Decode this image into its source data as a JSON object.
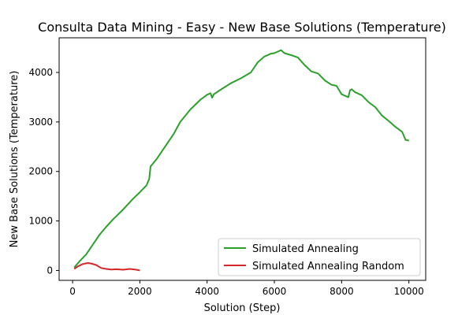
{
  "chart_data": {
    "type": "line",
    "title": "Consulta Data Mining - Easy - New Base Solutions (Temperature)",
    "xlabel": "Solution (Step)",
    "ylabel": "New Base Solutions (Temperature)",
    "xlim": [
      -400,
      10500
    ],
    "ylim": [
      -200,
      4700
    ],
    "xticks": [
      0,
      2000,
      4000,
      6000,
      8000,
      10000
    ],
    "yticks": [
      0,
      1000,
      2000,
      3000,
      4000
    ],
    "grid": false,
    "legend_position": "lower-right",
    "series": [
      {
        "name": "Simulated Annealing",
        "color": "#2ca02c",
        "x": [
          50,
          200,
          400,
          600,
          800,
          1000,
          1200,
          1500,
          1800,
          2000,
          2200,
          2280,
          2320,
          2500,
          2700,
          3000,
          3200,
          3500,
          3800,
          4000,
          4100,
          4150,
          4200,
          4400,
          4700,
          5000,
          5300,
          5500,
          5700,
          5900,
          6000,
          6200,
          6300,
          6500,
          6700,
          6900,
          7100,
          7300,
          7500,
          7700,
          7850,
          8000,
          8200,
          8250,
          8300,
          8400,
          8600,
          8800,
          9000,
          9200,
          9400,
          9600,
          9800,
          9900,
          10000
        ],
        "y": [
          60,
          180,
          320,
          520,
          720,
          880,
          1030,
          1230,
          1450,
          1580,
          1720,
          1850,
          2100,
          2250,
          2450,
          2750,
          3000,
          3250,
          3450,
          3550,
          3580,
          3490,
          3560,
          3650,
          3780,
          3880,
          4000,
          4200,
          4320,
          4380,
          4390,
          4450,
          4390,
          4350,
          4300,
          4150,
          4020,
          3980,
          3840,
          3750,
          3730,
          3560,
          3500,
          3640,
          3660,
          3600,
          3540,
          3400,
          3300,
          3130,
          3020,
          2900,
          2800,
          2640,
          2620
        ]
      },
      {
        "name": "Simulated Annealing Random",
        "color": "#d62728",
        "x": [
          50,
          150,
          300,
          450,
          550,
          700,
          850,
          1000,
          1150,
          1300,
          1500,
          1700,
          1850,
          2000
        ],
        "y": [
          30,
          80,
          130,
          150,
          140,
          110,
          50,
          30,
          20,
          25,
          15,
          30,
          20,
          0
        ]
      }
    ]
  }
}
